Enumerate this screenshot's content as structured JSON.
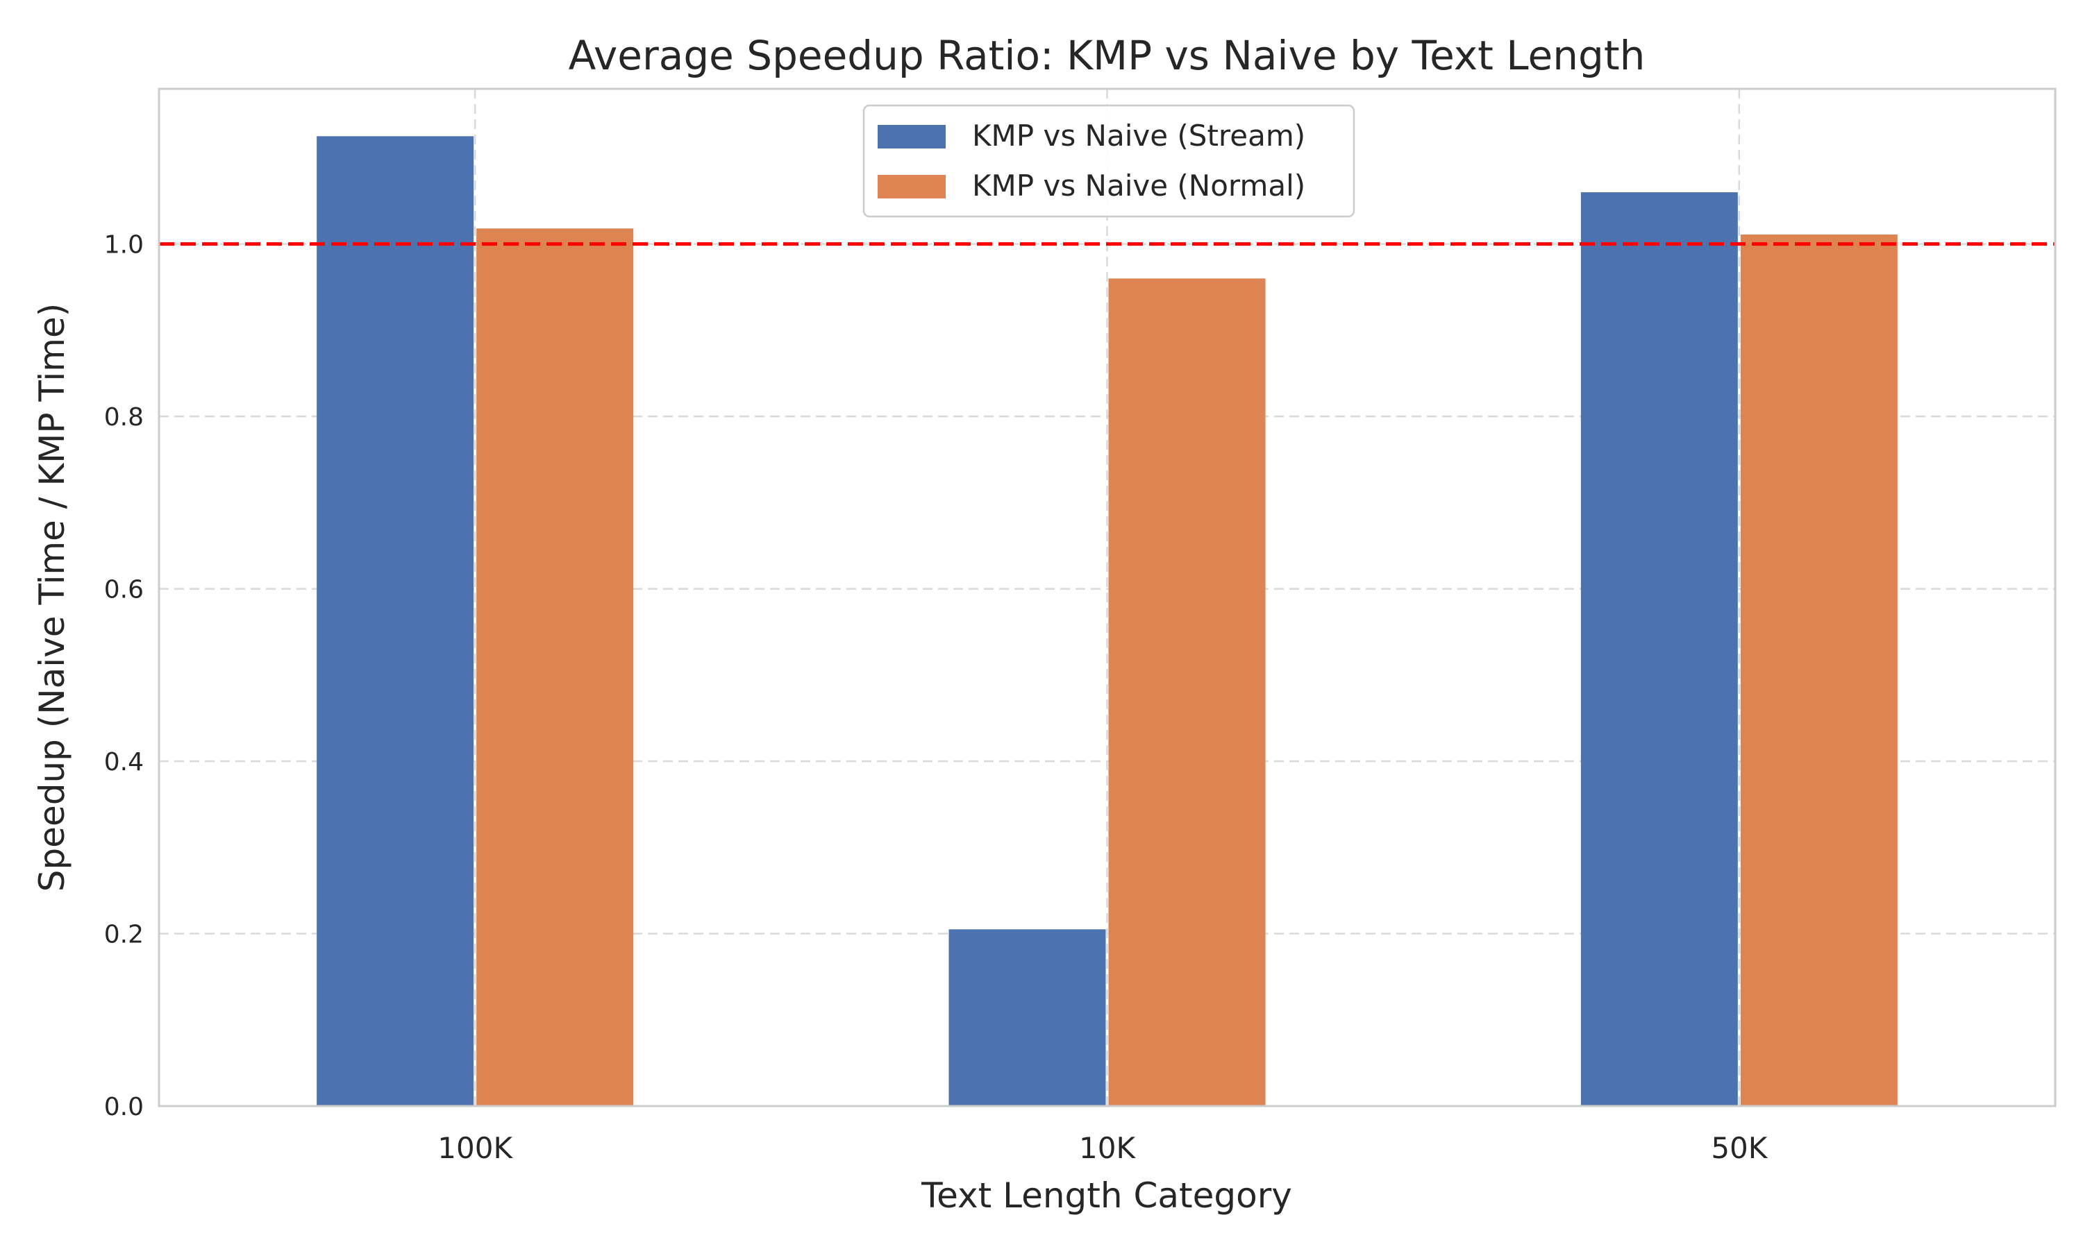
{
  "chart_data": {
    "type": "bar",
    "title": "Average Speedup Ratio: KMP vs Naive by Text Length",
    "xlabel": "Text Length Category",
    "ylabel": "Speedup (Naive Time / KMP Time)",
    "categories": [
      "100K",
      "10K",
      "50K"
    ],
    "series": [
      {
        "name": "KMP vs Naive (Stream)",
        "values": [
          1.125,
          0.205,
          1.06
        ],
        "color": "#4c72b0"
      },
      {
        "name": "KMP vs Naive (Normal)",
        "values": [
          1.018,
          0.96,
          1.011
        ],
        "color": "#dd8452"
      }
    ],
    "yticks": [
      0.0,
      0.2,
      0.4,
      0.6,
      0.8,
      1.0
    ],
    "ytick_labels": [
      "0.0",
      "0.2",
      "0.4",
      "0.6",
      "0.8",
      "1.0"
    ],
    "ylim": [
      0,
      1.18
    ],
    "reference_line": {
      "y": 1.0,
      "color": "#ff0000",
      "style": "dashed"
    },
    "grid": true,
    "legend_position": "top-center"
  }
}
